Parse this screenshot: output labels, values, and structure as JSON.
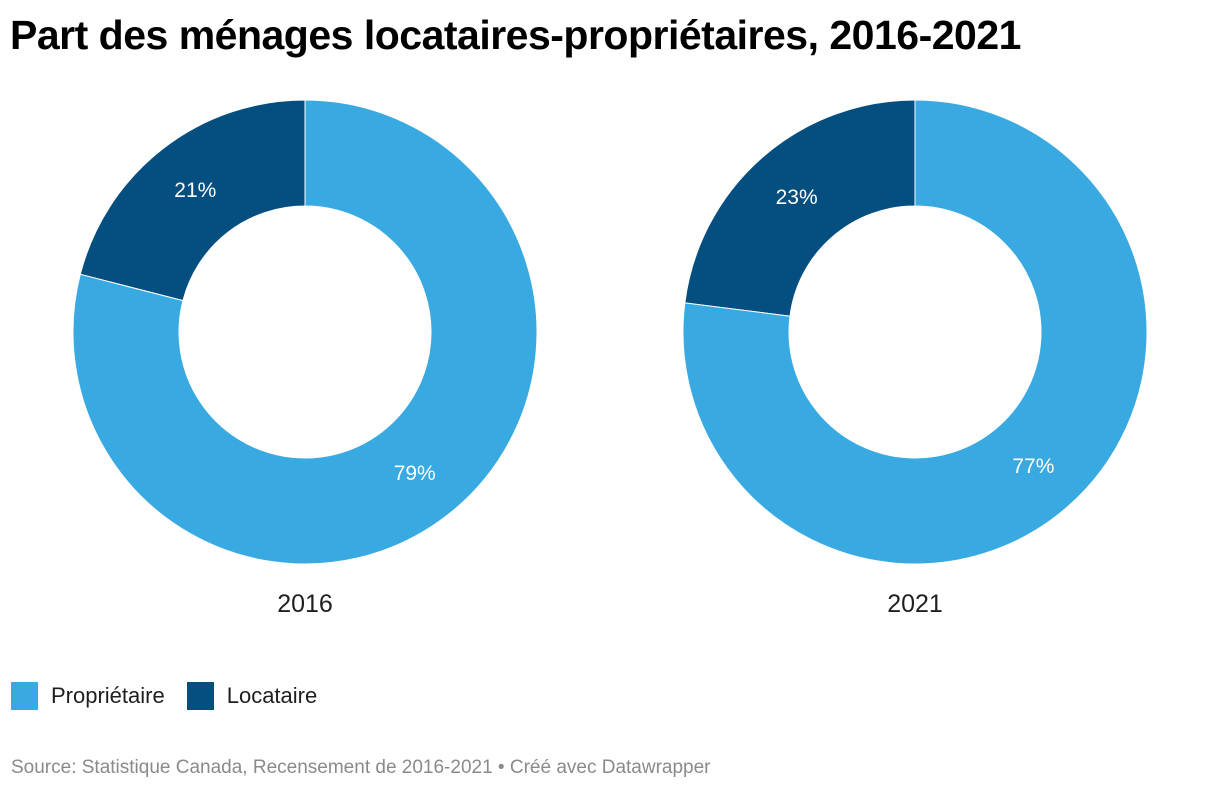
{
  "title": "Part des ménages locataires-propriétaires, 2016-2021",
  "colors": {
    "proprietaire": "#38a9e1",
    "locataire": "#044f80"
  },
  "chart_data": [
    {
      "type": "pie",
      "variant": "donut",
      "label": "2016",
      "slices": [
        {
          "name": "Locataire",
          "value": 21,
          "label": "21%"
        },
        {
          "name": "Propriétaire",
          "value": 79,
          "label": "79%"
        }
      ]
    },
    {
      "type": "pie",
      "variant": "donut",
      "label": "2021",
      "slices": [
        {
          "name": "Locataire",
          "value": 23,
          "label": "23%"
        },
        {
          "name": "Propriétaire",
          "value": 77,
          "label": "77%"
        }
      ]
    }
  ],
  "legend": {
    "items": [
      {
        "label": "Propriétaire",
        "color": "#38a9e1"
      },
      {
        "label": "Locataire",
        "color": "#044f80"
      }
    ]
  },
  "footer": {
    "source": "Source: Statistique Canada, Recensement de 2016-2021 • Créé avec Datawrapper"
  }
}
